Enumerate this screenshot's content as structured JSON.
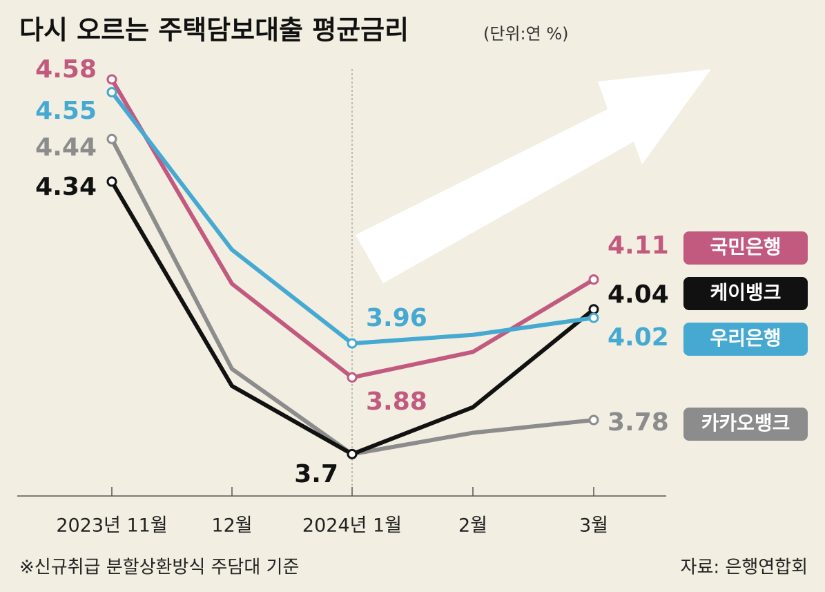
{
  "chart_data": {
    "type": "line",
    "title": "다시 오르는 주택담보대출 평균금리",
    "subtitle": "(단위:연 %)",
    "categories": [
      "2023년 11월",
      "12월",
      "2024년 1월",
      "2월",
      "3월"
    ],
    "series": [
      {
        "name": "국민은행",
        "color": "#c25a80",
        "values": [
          4.58,
          4.1,
          3.88,
          3.94,
          4.11
        ],
        "value_labels": [
          "4.58",
          null,
          "3.88",
          null,
          "4.11"
        ]
      },
      {
        "name": "케이뱅크",
        "color": "#111111",
        "values": [
          4.34,
          3.86,
          3.7,
          3.81,
          4.04
        ],
        "value_labels": [
          "4.34",
          null,
          "3.7",
          null,
          "4.04"
        ]
      },
      {
        "name": "우리은행",
        "color": "#45a9d2",
        "values": [
          4.55,
          4.18,
          3.96,
          3.98,
          4.02
        ],
        "value_labels": [
          "4.55",
          null,
          "3.96",
          null,
          "4.02"
        ]
      },
      {
        "name": "카카오뱅크",
        "color": "#8c8c8c",
        "values": [
          4.44,
          3.9,
          3.7,
          3.75,
          3.78
        ],
        "value_labels": [
          "4.44",
          null,
          null,
          null,
          "3.78"
        ]
      }
    ],
    "ylim": [
      3.6,
      4.7
    ],
    "grid": false,
    "footnote": "※신규취급 분할상환방식 주담대 기준",
    "source": "자료: 은행연합회"
  }
}
